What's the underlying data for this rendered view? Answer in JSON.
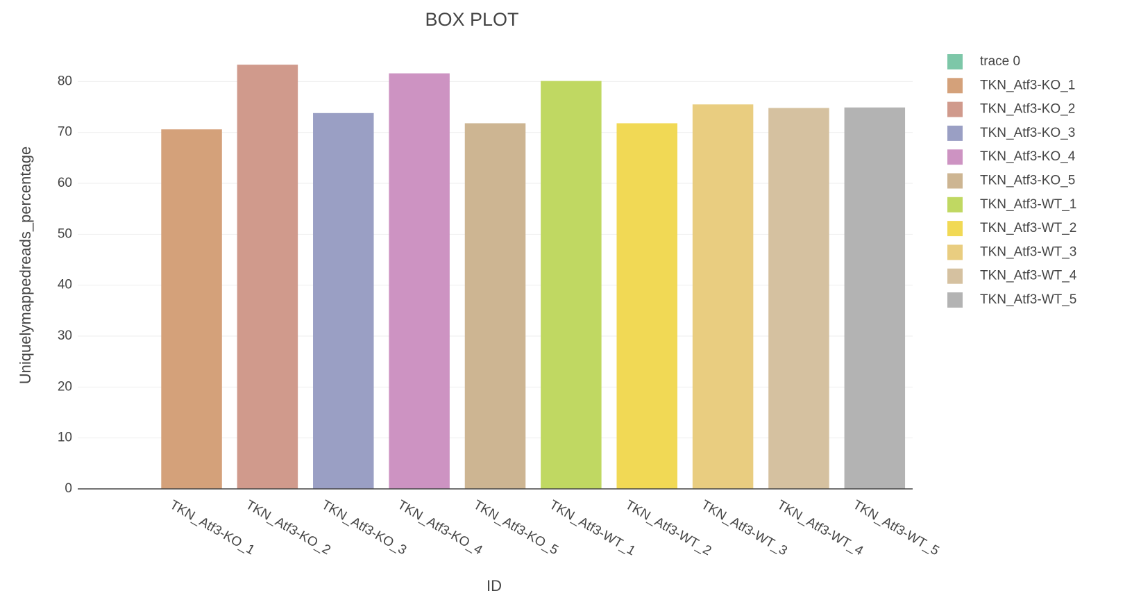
{
  "chart_data": {
    "type": "bar",
    "title": "BOX PLOT",
    "x_label": "ID",
    "y_label": "Uniquelymappedreads_percentage",
    "categories": [
      null,
      "TKN_Atf3-KO_1",
      "TKN_Atf3-KO_2",
      "TKN_Atf3-KO_3",
      "TKN_Atf3-KO_4",
      "TKN_Atf3-KO_5",
      "TKN_Atf3-WT_1",
      "TKN_Atf3-WT_2",
      "TKN_Atf3-WT_3",
      "TKN_Atf3-WT_4",
      "TKN_Atf3-WT_5"
    ],
    "series": [
      {
        "name": "trace 0",
        "color": "#7dc7a8",
        "values": [
          null,
          null,
          null,
          null,
          null,
          null,
          null,
          null,
          null,
          null,
          null
        ]
      },
      {
        "name": "TKN_Atf3-KO_1",
        "color": "#d4a17a",
        "values": [
          null,
          70.6,
          null,
          null,
          null,
          null,
          null,
          null,
          null,
          null,
          null
        ]
      },
      {
        "name": "TKN_Atf3-KO_2",
        "color": "#d09a8c",
        "values": [
          null,
          null,
          83.3,
          null,
          null,
          null,
          null,
          null,
          null,
          null,
          null
        ]
      },
      {
        "name": "TKN_Atf3-KO_3",
        "color": "#9a9fc4",
        "values": [
          null,
          null,
          null,
          73.8,
          null,
          null,
          null,
          null,
          null,
          null,
          null
        ]
      },
      {
        "name": "TKN_Atf3-KO_4",
        "color": "#cd93c2",
        "values": [
          null,
          null,
          null,
          null,
          81.6,
          null,
          null,
          null,
          null,
          null,
          null
        ]
      },
      {
        "name": "TKN_Atf3-KO_5",
        "color": "#cdb592",
        "values": [
          null,
          null,
          null,
          null,
          null,
          71.8,
          null,
          null,
          null,
          null,
          null
        ]
      },
      {
        "name": "TKN_Atf3-WT_1",
        "color": "#c0d862",
        "values": [
          null,
          null,
          null,
          null,
          null,
          null,
          80.1,
          null,
          null,
          null,
          null
        ]
      },
      {
        "name": "TKN_Atf3-WT_2",
        "color": "#f1d955",
        "values": [
          null,
          null,
          null,
          null,
          null,
          null,
          null,
          71.8,
          null,
          null,
          null
        ]
      },
      {
        "name": "TKN_Atf3-WT_3",
        "color": "#e9cd80",
        "values": [
          null,
          null,
          null,
          null,
          null,
          null,
          null,
          null,
          75.5,
          null,
          null
        ]
      },
      {
        "name": "TKN_Atf3-WT_4",
        "color": "#d5c1a0",
        "values": [
          null,
          null,
          null,
          null,
          null,
          null,
          null,
          null,
          null,
          74.8,
          null
        ]
      },
      {
        "name": "TKN_Atf3-WT_5",
        "color": "#b3b3b3",
        "values": [
          null,
          null,
          null,
          null,
          null,
          null,
          null,
          null,
          null,
          null,
          74.9
        ]
      }
    ],
    "ylim": [
      0,
      84
    ],
    "yticks": [
      0,
      10,
      20,
      30,
      40,
      50,
      60,
      70,
      80
    ],
    "grid": true
  }
}
